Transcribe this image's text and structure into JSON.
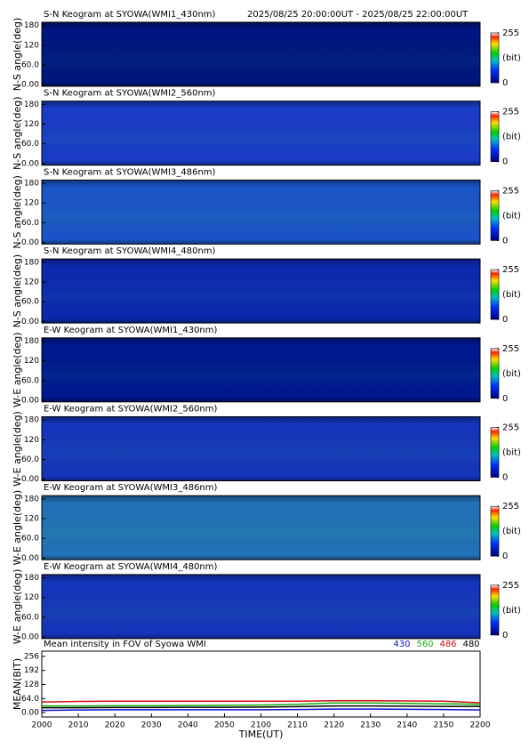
{
  "chart_data": [
    {
      "type": "heatmap",
      "title": "S-N Keogram at SYOWA(WMI1_430nm)",
      "subtitle": "2025/08/25 20:00:00UT - 2025/08/25 22:00:00UT",
      "y_label": "N-S angle(deg)",
      "ylim": [
        -5,
        190
      ],
      "yticks": [
        180,
        120,
        {
          "value": 60,
          "label": "60.0"
        },
        {
          "value": 0,
          "label": "0.00"
        }
      ],
      "zlim": [
        0,
        255
      ],
      "zticks": [
        0,
        255
      ],
      "z_label": "(bit)",
      "color": "#001580"
    },
    {
      "type": "heatmap",
      "title": "S-N Keogram at SYOWA(WMI2_560nm)",
      "y_label": "N-S angle(deg)",
      "ylim": [
        -5,
        190
      ],
      "yticks": [
        180,
        120,
        {
          "value": 60,
          "label": "60.0"
        },
        {
          "value": 0,
          "label": "0.00"
        }
      ],
      "zlim": [
        0,
        255
      ],
      "zticks": [
        0,
        255
      ],
      "z_label": "(bit)",
      "color": "#1a3cc8"
    },
    {
      "type": "heatmap",
      "title": "S-N Keogram at SYOWA(WMI3_486nm)",
      "y_label": "N-S angle(deg)",
      "ylim": [
        -5,
        190
      ],
      "yticks": [
        180,
        120,
        {
          "value": 60,
          "label": "60.0"
        },
        {
          "value": 0,
          "label": "0.00"
        }
      ],
      "zlim": [
        0,
        255
      ],
      "zticks": [
        0,
        255
      ],
      "z_label": "(bit)",
      "color": "#1a55c8"
    },
    {
      "type": "heatmap",
      "title": "S-N Keogram at SYOWA(WMI4_480nm)",
      "y_label": "N-S angle(deg)",
      "ylim": [
        -5,
        190
      ],
      "yticks": [
        180,
        120,
        {
          "value": 60,
          "label": "60.0"
        },
        {
          "value": 0,
          "label": "0.00"
        }
      ],
      "zlim": [
        0,
        255
      ],
      "zticks": [
        0,
        255
      ],
      "z_label": "(bit)",
      "color": "#0c28b0"
    },
    {
      "type": "heatmap",
      "title": "E-W Keogram at SYOWA(WMI1_430nm)",
      "y_label": "W-E angle(deg)",
      "ylim": [
        -5,
        190
      ],
      "yticks": [
        180,
        120,
        {
          "value": 60,
          "label": "60.0"
        },
        {
          "value": 0,
          "label": "0.00"
        }
      ],
      "zlim": [
        0,
        255
      ],
      "zticks": [
        0,
        255
      ],
      "z_label": "(bit)",
      "color": "#001890"
    },
    {
      "type": "heatmap",
      "title": "E-W Keogram at SYOWA(WMI2_560nm)",
      "y_label": "W-E angle(deg)",
      "ylim": [
        -5,
        190
      ],
      "yticks": [
        180,
        120,
        {
          "value": 60,
          "label": "60.0"
        },
        {
          "value": 0,
          "label": "0.00"
        }
      ],
      "zlim": [
        0,
        255
      ],
      "zticks": [
        0,
        255
      ],
      "z_label": "(bit)",
      "color": "#1535bc"
    },
    {
      "type": "heatmap",
      "title": "E-W Keogram at SYOWA(WMI3_486nm)",
      "y_label": "W-E angle(deg)",
      "ylim": [
        -5,
        190
      ],
      "yticks": [
        180,
        120,
        {
          "value": 60,
          "label": "60.0"
        },
        {
          "value": 0,
          "label": "0.00"
        }
      ],
      "zlim": [
        0,
        255
      ],
      "zticks": [
        0,
        255
      ],
      "z_label": "(bit)",
      "color": "#2272b8"
    },
    {
      "type": "heatmap",
      "title": "E-W Keogram at SYOWA(WMI4_480nm)",
      "y_label": "W-E angle(deg)",
      "ylim": [
        -5,
        190
      ],
      "yticks": [
        180,
        120,
        {
          "value": 60,
          "label": "60.0"
        },
        {
          "value": 0,
          "label": "0.00"
        }
      ],
      "zlim": [
        0,
        255
      ],
      "zticks": [
        0,
        255
      ],
      "z_label": "(bit)",
      "color": "#1535bc"
    },
    {
      "type": "line",
      "title": "Mean intensity in FOV of Syowa WMI",
      "x_label": "TIME(UT)",
      "y_label": "MEAN(BIT)",
      "x": [
        0,
        10,
        20,
        30,
        40,
        50,
        60,
        70,
        80,
        90,
        100,
        110,
        120
      ],
      "xlim": [
        0,
        120
      ],
      "xticks": [
        {
          "value": 0,
          "label": "2000"
        },
        {
          "value": 10,
          "label": "2010"
        },
        {
          "value": 20,
          "label": "2020"
        },
        {
          "value": 30,
          "label": "2030"
        },
        {
          "value": 40,
          "label": "2040"
        },
        {
          "value": 50,
          "label": "2050"
        },
        {
          "value": 60,
          "label": "2100"
        },
        {
          "value": 70,
          "label": "2110"
        },
        {
          "value": 80,
          "label": "2120"
        },
        {
          "value": 90,
          "label": "2130"
        },
        {
          "value": 100,
          "label": "2140"
        },
        {
          "value": 110,
          "label": "2150"
        },
        {
          "value": 120,
          "label": "2200"
        }
      ],
      "ylim": [
        -20,
        280
      ],
      "yticks": [
        256,
        192,
        128,
        {
          "value": 64,
          "label": "64.0"
        },
        {
          "value": 0,
          "label": "0.00"
        }
      ],
      "series": [
        {
          "name": "430",
          "color": "#1010d0",
          "values": [
            10,
            12,
            13,
            13,
            13,
            13,
            13,
            14,
            16,
            16,
            15,
            14,
            12
          ]
        },
        {
          "name": "560",
          "color": "#10b010",
          "values": [
            30,
            30,
            31,
            31,
            32,
            33,
            34,
            38,
            44,
            44,
            42,
            40,
            38
          ]
        },
        {
          "name": "486",
          "color": "#d01010",
          "values": [
            48,
            51,
            52,
            52,
            52,
            52,
            52,
            52,
            54,
            54,
            53,
            52,
            45
          ]
        },
        {
          "name": "480",
          "color": "#000000",
          "values": [
            22,
            22,
            23,
            23,
            24,
            24,
            25,
            27,
            30,
            30,
            29,
            28,
            28
          ]
        }
      ]
    }
  ]
}
